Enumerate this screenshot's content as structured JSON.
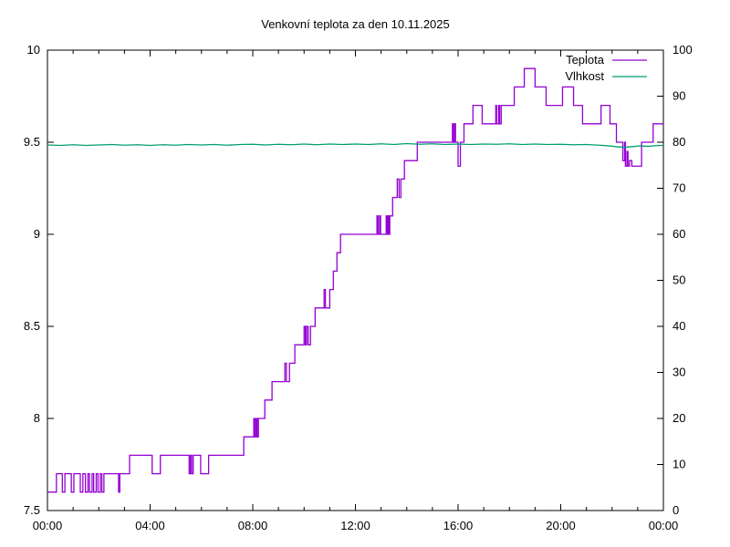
{
  "title": "Venkovní teplota za den 10.11.2025",
  "colors": {
    "temperature": "#9400d3",
    "humidity": "#009e73",
    "axis": "#000000",
    "background": "#ffffff"
  },
  "chart_data": {
    "type": "line",
    "title": "Venkovní teplota za den 10.11.2025",
    "xlabel": "",
    "ylabel_left": "",
    "ylabel_right": "",
    "grid": false,
    "legend_position": "top-right-inside",
    "x_axis": {
      "range_hours": [
        0,
        24
      ],
      "major_tick_hours": [
        0,
        4,
        8,
        12,
        16,
        20,
        24
      ],
      "major_tick_labels": [
        "00:00",
        "04:00",
        "08:00",
        "12:00",
        "16:00",
        "20:00",
        "00:00"
      ],
      "minor_tick_every_hours": 1
    },
    "y_left": {
      "range": [
        7.5,
        10
      ],
      "ticks": [
        7.5,
        8,
        8.5,
        9,
        9.5,
        10
      ],
      "tick_labels": [
        "7.5",
        "8",
        "8.5",
        "9",
        "9.5",
        "10"
      ]
    },
    "y_right": {
      "range": [
        0,
        100
      ],
      "ticks": [
        0,
        10,
        20,
        30,
        40,
        50,
        60,
        70,
        80,
        90,
        100
      ],
      "tick_labels": [
        "0",
        "10",
        "20",
        "30",
        "40",
        "50",
        "60",
        "70",
        "80",
        "90",
        "100"
      ]
    },
    "legend": [
      {
        "label": "Teplota",
        "color": "#9400d3"
      },
      {
        "label": "Vlhkost",
        "color": "#009e73"
      }
    ],
    "series": [
      {
        "name": "Teplota",
        "axis": "left",
        "color": "#9400d3",
        "mode": "steps",
        "points": [
          [
            0,
            7.6
          ],
          [
            0.35,
            7.7
          ],
          [
            0.58,
            7.6
          ],
          [
            0.68,
            7.7
          ],
          [
            0.93,
            7.6
          ],
          [
            1.03,
            7.7
          ],
          [
            1.28,
            7.6
          ],
          [
            1.38,
            7.7
          ],
          [
            1.48,
            7.6
          ],
          [
            1.58,
            7.7
          ],
          [
            1.64,
            7.6
          ],
          [
            1.74,
            7.7
          ],
          [
            1.8,
            7.6
          ],
          [
            1.9,
            7.7
          ],
          [
            1.97,
            7.6
          ],
          [
            2.06,
            7.7
          ],
          [
            2.12,
            7.6
          ],
          [
            2.2,
            7.7
          ],
          [
            2.77,
            7.6
          ],
          [
            2.82,
            7.7
          ],
          [
            3.2,
            7.8
          ],
          [
            4.08,
            7.7
          ],
          [
            4.4,
            7.8
          ],
          [
            5.52,
            7.7
          ],
          [
            5.57,
            7.8
          ],
          [
            5.62,
            7.7
          ],
          [
            5.68,
            7.8
          ],
          [
            5.97,
            7.7
          ],
          [
            6.28,
            7.8
          ],
          [
            7.65,
            7.9
          ],
          [
            8.04,
            8.0
          ],
          [
            8.08,
            7.9
          ],
          [
            8.13,
            8.0
          ],
          [
            8.17,
            7.9
          ],
          [
            8.22,
            8.0
          ],
          [
            8.47,
            8.1
          ],
          [
            8.75,
            8.2
          ],
          [
            9.25,
            8.3
          ],
          [
            9.31,
            8.2
          ],
          [
            9.43,
            8.3
          ],
          [
            9.64,
            8.4
          ],
          [
            10.0,
            8.5
          ],
          [
            10.05,
            8.4
          ],
          [
            10.1,
            8.5
          ],
          [
            10.16,
            8.4
          ],
          [
            10.25,
            8.5
          ],
          [
            10.43,
            8.6
          ],
          [
            10.78,
            8.7
          ],
          [
            10.83,
            8.6
          ],
          [
            11.0,
            8.7
          ],
          [
            11.14,
            8.8
          ],
          [
            11.28,
            8.9
          ],
          [
            11.42,
            9.0
          ],
          [
            12.84,
            9.1
          ],
          [
            12.88,
            9.0
          ],
          [
            12.94,
            9.1
          ],
          [
            12.98,
            9.0
          ],
          [
            13.2,
            9.1
          ],
          [
            13.24,
            9.0
          ],
          [
            13.28,
            9.1
          ],
          [
            13.31,
            9.0
          ],
          [
            13.34,
            9.1
          ],
          [
            13.45,
            9.2
          ],
          [
            13.63,
            9.3
          ],
          [
            13.7,
            9.2
          ],
          [
            13.77,
            9.3
          ],
          [
            13.91,
            9.4
          ],
          [
            14.41,
            9.5
          ],
          [
            15.78,
            9.6
          ],
          [
            15.81,
            9.5
          ],
          [
            15.86,
            9.6
          ],
          [
            15.9,
            9.5
          ],
          [
            16.0,
            9.37
          ],
          [
            16.09,
            9.5
          ],
          [
            16.23,
            9.6
          ],
          [
            16.58,
            9.7
          ],
          [
            16.94,
            9.6
          ],
          [
            17.47,
            9.7
          ],
          [
            17.5,
            9.6
          ],
          [
            17.58,
            9.7
          ],
          [
            17.62,
            9.6
          ],
          [
            17.68,
            9.7
          ],
          [
            18.19,
            9.8
          ],
          [
            18.58,
            9.9
          ],
          [
            19.0,
            9.8
          ],
          [
            19.43,
            9.7
          ],
          [
            20.07,
            9.8
          ],
          [
            20.5,
            9.7
          ],
          [
            20.85,
            9.6
          ],
          [
            21.57,
            9.7
          ],
          [
            21.92,
            9.6
          ],
          [
            22.17,
            9.5
          ],
          [
            22.42,
            9.4
          ],
          [
            22.49,
            9.5
          ],
          [
            22.52,
            9.37
          ],
          [
            22.58,
            9.45
          ],
          [
            22.62,
            9.37
          ],
          [
            22.68,
            9.4
          ],
          [
            22.77,
            9.37
          ],
          [
            23.15,
            9.5
          ],
          [
            23.6,
            9.6
          ],
          [
            24,
            9.6
          ]
        ]
      },
      {
        "name": "Vlhkost",
        "axis": "right",
        "color": "#009e73",
        "mode": "line",
        "points": [
          [
            0,
            79.4
          ],
          [
            0.5,
            79.3
          ],
          [
            1,
            79.45
          ],
          [
            1.5,
            79.3
          ],
          [
            2,
            79.4
          ],
          [
            2.5,
            79.5
          ],
          [
            3,
            79.35
          ],
          [
            3.5,
            79.45
          ],
          [
            4,
            79.3
          ],
          [
            4.5,
            79.45
          ],
          [
            5,
            79.35
          ],
          [
            5.5,
            79.5
          ],
          [
            6,
            79.4
          ],
          [
            6.5,
            79.5
          ],
          [
            7,
            79.35
          ],
          [
            7.5,
            79.5
          ],
          [
            8,
            79.55
          ],
          [
            8.5,
            79.4
          ],
          [
            9,
            79.55
          ],
          [
            9.5,
            79.45
          ],
          [
            10,
            79.6
          ],
          [
            10.5,
            79.45
          ],
          [
            11,
            79.6
          ],
          [
            11.5,
            79.5
          ],
          [
            12,
            79.6
          ],
          [
            12.5,
            79.5
          ],
          [
            13,
            79.65
          ],
          [
            13.5,
            79.5
          ],
          [
            14,
            79.7
          ],
          [
            14.5,
            79.55
          ],
          [
            15,
            79.65
          ],
          [
            15.5,
            79.5
          ],
          [
            16,
            79.6
          ],
          [
            16.5,
            79.5
          ],
          [
            17,
            79.6
          ],
          [
            17.5,
            79.55
          ],
          [
            18,
            79.65
          ],
          [
            18.5,
            79.5
          ],
          [
            19,
            79.6
          ],
          [
            19.5,
            79.5
          ],
          [
            20,
            79.55
          ],
          [
            20.5,
            79.45
          ],
          [
            21,
            79.5
          ],
          [
            21.5,
            79.35
          ],
          [
            21.9,
            79.2
          ],
          [
            22.2,
            79.0
          ],
          [
            22.5,
            78.9
          ],
          [
            22.8,
            79.05
          ],
          [
            23.1,
            79.2
          ],
          [
            23.4,
            79.1
          ],
          [
            23.7,
            79.25
          ],
          [
            24,
            79.3
          ]
        ]
      }
    ]
  }
}
